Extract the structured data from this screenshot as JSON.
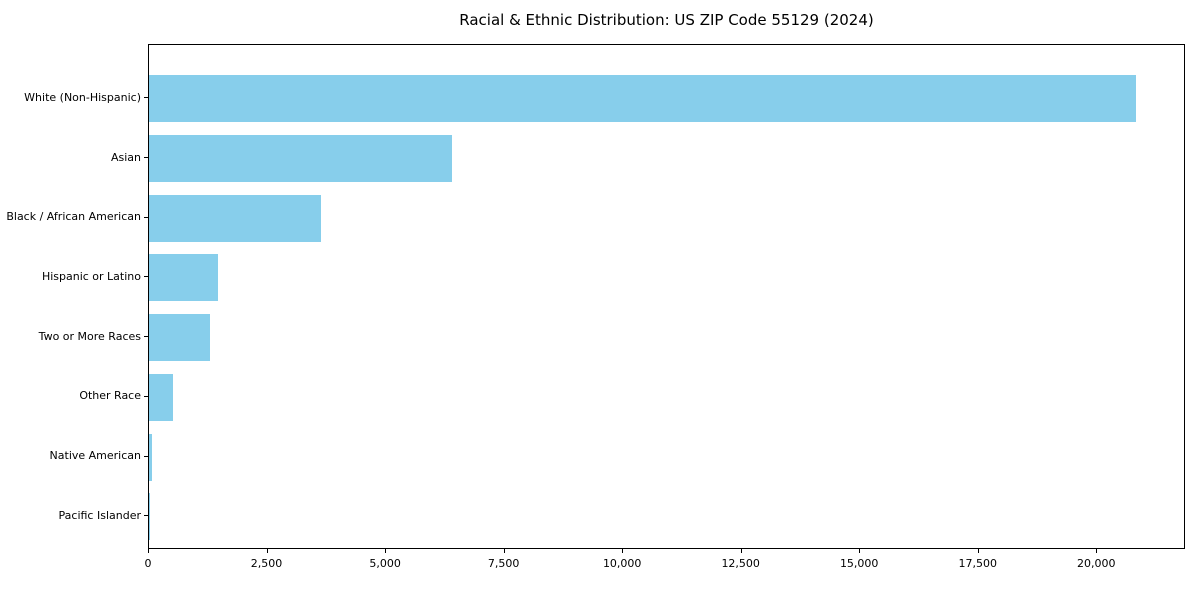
{
  "chart_data": {
    "type": "bar",
    "orientation": "horizontal",
    "title": "Racial & Ethnic Distribution: US ZIP Code 55129 (2024)",
    "categories": [
      "White (Non-Hispanic)",
      "Asian",
      "Black / African American",
      "Hispanic or Latino",
      "Two or More Races",
      "Other Race",
      "Native American",
      "Pacific Islander"
    ],
    "values": [
      20820,
      6380,
      3630,
      1450,
      1280,
      500,
      60,
      20
    ],
    "xlabel": "",
    "ylabel": "",
    "xlim": [
      0,
      21870
    ],
    "x_ticks": [
      0,
      2500,
      5000,
      7500,
      10000,
      12500,
      15000,
      17500,
      20000
    ],
    "x_tick_labels": [
      "0",
      "2,500",
      "5,000",
      "7,500",
      "10,000",
      "12,500",
      "15,000",
      "17,500",
      "20,000"
    ],
    "bar_color": "#87CEEB",
    "axis_color": "#000000",
    "background": "#FFFFFF",
    "grid": false,
    "legend_position": "none",
    "categories_order": "top-to-bottom descending by value"
  }
}
